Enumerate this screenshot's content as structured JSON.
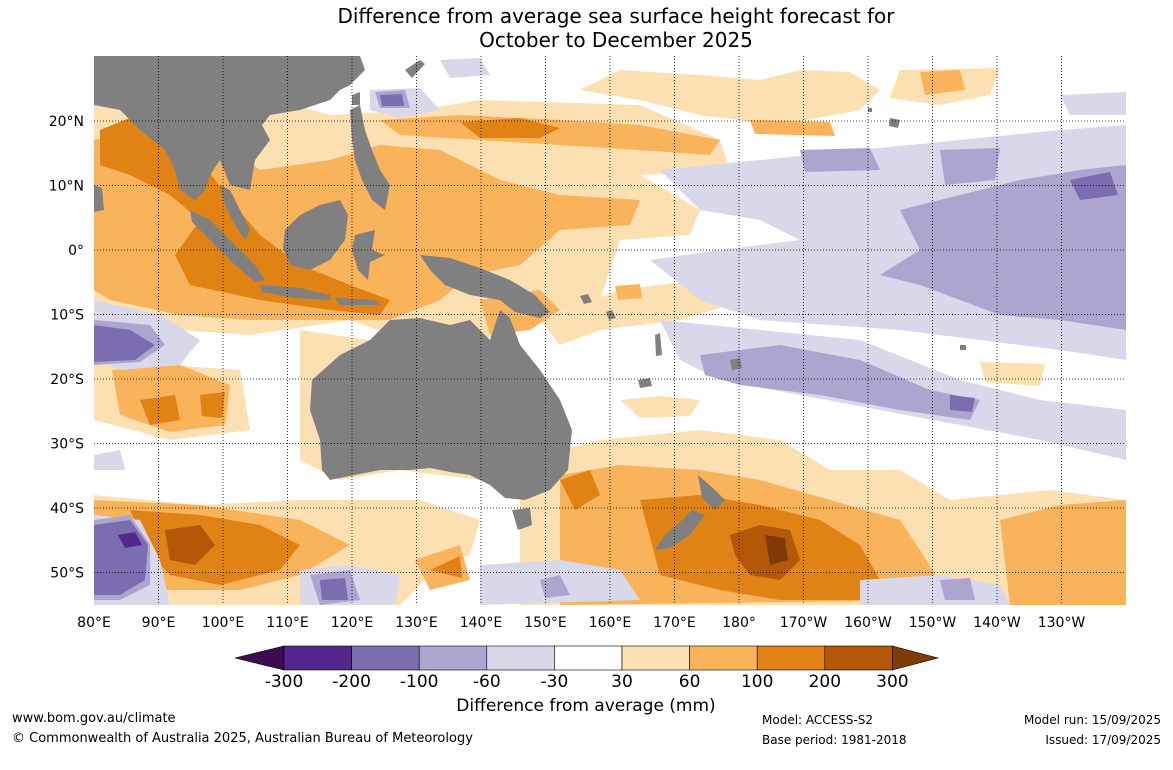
{
  "title": {
    "line1": "Difference from average sea surface height forecast for",
    "line2": "October to December 2025"
  },
  "map": {
    "lon_labels": [
      "80°E",
      "90°E",
      "100°E",
      "110°E",
      "120°E",
      "130°E",
      "140°E",
      "150°E",
      "160°E",
      "170°E",
      "180°",
      "170°W",
      "160°W",
      "150°W",
      "140°W",
      "130°W"
    ],
    "lat_labels": [
      "20°N",
      "10°N",
      "0°",
      "10°S",
      "20°S",
      "30°S",
      "40°S",
      "50°S"
    ],
    "land_color": "#808080"
  },
  "colorbar": {
    "title": "Difference from average (mm)",
    "ticks": [
      "-300",
      "-200",
      "-100",
      "-60",
      "-30",
      "30",
      "60",
      "100",
      "200",
      "300"
    ],
    "colors": [
      "#3d0b4f",
      "#54278f",
      "#7c6cb0",
      "#ada5cf",
      "#d9d8ea",
      "#ffffff",
      "#fde0b2",
      "#f9b35a",
      "#e08214",
      "#b35806",
      "#7f3b08"
    ]
  },
  "footer": {
    "website": "www.bom.gov.au/climate",
    "copyright": "© Commonwealth of Australia 2025, Australian Bureau of Meteorology",
    "model": "Model: ACCESS-S2",
    "base_period": "Base period: 1981-2018",
    "model_run": "Model run: 15/09/2025",
    "issued": "Issued: 17/09/2025"
  }
}
